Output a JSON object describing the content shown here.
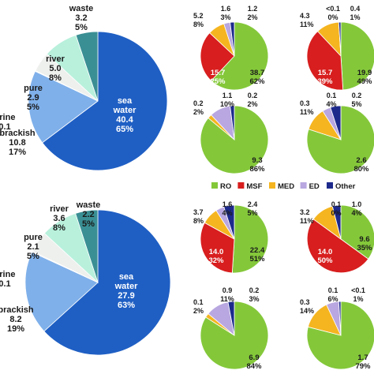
{
  "colors": {
    "sea_water": "#1f5fc4",
    "brackish": "#7fb0ea",
    "brine": "#dcdcdc",
    "pure": "#eef0ee",
    "river": "#b8f0dc",
    "waste": "#3a8f94",
    "RO": "#84c83a",
    "MSF": "#d81e1e",
    "MED": "#f5b520",
    "ED": "#b8a7e0",
    "Other": "#1d2a8c"
  },
  "legend": [
    "RO",
    "MSF",
    "MED",
    "ED",
    "Other"
  ],
  "chart_data": [
    {
      "type": "pie",
      "panel": "top-left",
      "slices": [
        {
          "label": "sea water",
          "value": 40.4,
          "pct": "65%"
        },
        {
          "label": "brackish",
          "value": 10.8,
          "pct": "17%"
        },
        {
          "label": "brine",
          "value": 0.1,
          "pct": ""
        },
        {
          "label": "pure",
          "value": 2.9,
          "pct": "5%"
        },
        {
          "label": "river",
          "value": 5.0,
          "pct": "8%"
        },
        {
          "label": "waste",
          "value": 3.2,
          "pct": "5%"
        }
      ]
    },
    {
      "type": "pie",
      "panel": "bottom-left",
      "slices": [
        {
          "label": "sea water",
          "value": 27.9,
          "pct": "63%"
        },
        {
          "label": "brackish",
          "value": 8.2,
          "pct": "19%"
        },
        {
          "label": "brine",
          "value": 0.1,
          "pct": ""
        },
        {
          "label": "pure",
          "value": 2.1,
          "pct": "5%"
        },
        {
          "label": "river",
          "value": 3.6,
          "pct": "8%"
        },
        {
          "label": "waste",
          "value": 2.2,
          "pct": "5%"
        }
      ]
    },
    {
      "type": "pie",
      "panel": "top-right-1",
      "slices": [
        {
          "label": "RO",
          "value": "38.7",
          "pct": "62%"
        },
        {
          "label": "MSF",
          "value": "15.7",
          "pct": "25%"
        },
        {
          "label": "MED",
          "value": "5.2",
          "pct": "8%"
        },
        {
          "label": "ED",
          "value": "1.6",
          "pct": "3%"
        },
        {
          "label": "Other",
          "value": "1.2",
          "pct": "2%"
        }
      ]
    },
    {
      "type": "pie",
      "panel": "top-right-2",
      "slices": [
        {
          "label": "RO",
          "value": "19.9",
          "pct": "49%"
        },
        {
          "label": "MSF",
          "value": "15.7",
          "pct": "39%"
        },
        {
          "label": "MED",
          "value": "4.3",
          "pct": "11%"
        },
        {
          "label": "ED",
          "value": "<0.1",
          "pct": "0%"
        },
        {
          "label": "Other",
          "value": "0.4",
          "pct": "1%"
        }
      ]
    },
    {
      "type": "pie",
      "panel": "top-right-3",
      "slices": [
        {
          "label": "RO",
          "value": "9.3",
          "pct": "86%"
        },
        {
          "label": "MED",
          "value": "0.2",
          "pct": "2%"
        },
        {
          "label": "ED",
          "value": "1.1",
          "pct": "10%"
        },
        {
          "label": "Other",
          "value": "0.2",
          "pct": "2%"
        }
      ]
    },
    {
      "type": "pie",
      "panel": "top-right-4",
      "slices": [
        {
          "label": "RO",
          "value": "2.6",
          "pct": "80%"
        },
        {
          "label": "MED",
          "value": "0.3",
          "pct": "11%"
        },
        {
          "label": "ED",
          "value": "0.1",
          "pct": "4%"
        },
        {
          "label": "Other",
          "value": "0.2",
          "pct": "5%"
        }
      ]
    },
    {
      "type": "pie",
      "panel": "bottom-right-1",
      "slices": [
        {
          "label": "RO",
          "value": "22.4",
          "pct": "51%"
        },
        {
          "label": "MSF",
          "value": "14.0",
          "pct": "32%"
        },
        {
          "label": "MED",
          "value": "3.7",
          "pct": "8%"
        },
        {
          "label": "ED",
          "value": "1.6",
          "pct": "4%"
        },
        {
          "label": "Other",
          "value": "2.4",
          "pct": "5%"
        }
      ]
    },
    {
      "type": "pie",
      "panel": "bottom-right-2",
      "slices": [
        {
          "label": "RO",
          "value": "9.6",
          "pct": "35%"
        },
        {
          "label": "MSF",
          "value": "14.0",
          "pct": "50%"
        },
        {
          "label": "MED",
          "value": "3.2",
          "pct": "11%"
        },
        {
          "label": "ED",
          "value": "0.1",
          "pct": "0%"
        },
        {
          "label": "Other",
          "value": "1.0",
          "pct": "4%"
        }
      ]
    },
    {
      "type": "pie",
      "panel": "bottom-right-3",
      "slices": [
        {
          "label": "RO",
          "value": "6.9",
          "pct": "84%"
        },
        {
          "label": "MED",
          "value": "0.1",
          "pct": "2%"
        },
        {
          "label": "ED",
          "value": "0.9",
          "pct": "11%"
        },
        {
          "label": "Other",
          "value": "0.2",
          "pct": "3%"
        }
      ]
    },
    {
      "type": "pie",
      "panel": "bottom-right-4",
      "slices": [
        {
          "label": "RO",
          "value": "1.7",
          "pct": "79%"
        },
        {
          "label": "MED",
          "value": "0.3",
          "pct": "14%"
        },
        {
          "label": "ED",
          "value": "0.1",
          "pct": "6%"
        },
        {
          "label": "Other",
          "value": "<0.1",
          "pct": "1%"
        }
      ]
    }
  ]
}
